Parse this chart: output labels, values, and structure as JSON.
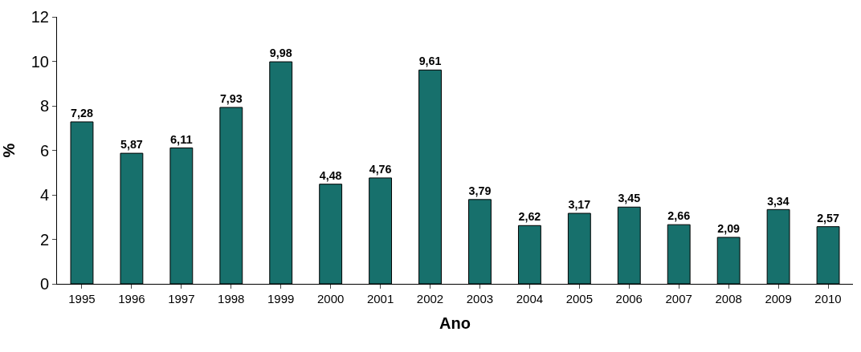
{
  "chart_data": {
    "type": "bar",
    "xlabel": "Ano",
    "ylabel": "%",
    "categories": [
      "1995",
      "1996",
      "1997",
      "1998",
      "1999",
      "2000",
      "2001",
      "2002",
      "2003",
      "2004",
      "2005",
      "2006",
      "2007",
      "2008",
      "2009",
      "2010"
    ],
    "values": [
      7.28,
      5.87,
      6.11,
      7.93,
      9.98,
      4.48,
      4.76,
      9.61,
      3.79,
      2.62,
      3.17,
      3.45,
      2.66,
      2.09,
      3.34,
      2.57
    ],
    "value_labels": [
      "7,28",
      "5,87",
      "6,11",
      "7,93",
      "9,98",
      "4,48",
      "4,76",
      "9,61",
      "3,79",
      "2,62",
      "3,17",
      "3,45",
      "2,66",
      "2,09",
      "3,34",
      "2,57"
    ],
    "color": "#17706c",
    "ylim": [
      0,
      12
    ],
    "yticks": [
      0,
      2,
      4,
      6,
      8,
      10,
      12
    ]
  }
}
